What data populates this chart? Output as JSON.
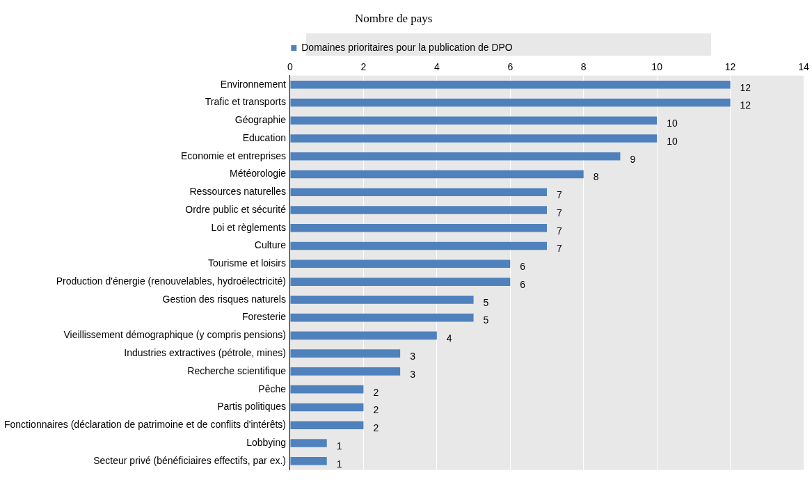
{
  "chart_data": {
    "type": "bar",
    "orientation": "horizontal",
    "title": "Nombre de pays",
    "categories": [
      "Environnement",
      "Trafic et transports",
      "Géographie",
      "Education",
      "Economie et entreprises",
      "Météorologie",
      "Ressources naturelles",
      "Ordre public et sécurité",
      "Loi et règlements",
      "Culture",
      "Tourisme et loisirs",
      "Production d'énergie (renouvelables, hydroélectricité)",
      "Gestion des risques naturels",
      "Foresterie",
      "Vieillissement démographique (y compris pensions)",
      "Industries extractives (pétrole, mines)",
      "Recherche scientifique",
      "Pêche",
      "Partis politiques",
      "Fonctionnaires (déclaration de patrimoine et de conflits d'intérêts)",
      "Lobbying",
      "Secteur privé (bénéficiaires effectifs, par ex.)"
    ],
    "series": [
      {
        "name": "Domaines prioritaires pour la publication de DPO",
        "color": "#4f81bd",
        "values": [
          12,
          12,
          10,
          10,
          9,
          8,
          7,
          7,
          7,
          7,
          6,
          6,
          5,
          5,
          4,
          3,
          3,
          2,
          2,
          2,
          1,
          1
        ]
      }
    ],
    "xlim": [
      0,
      14
    ],
    "xticks": [
      0,
      2,
      4,
      6,
      8,
      10,
      12,
      14
    ],
    "grid": "x",
    "legend": "top",
    "data_labels": true
  }
}
